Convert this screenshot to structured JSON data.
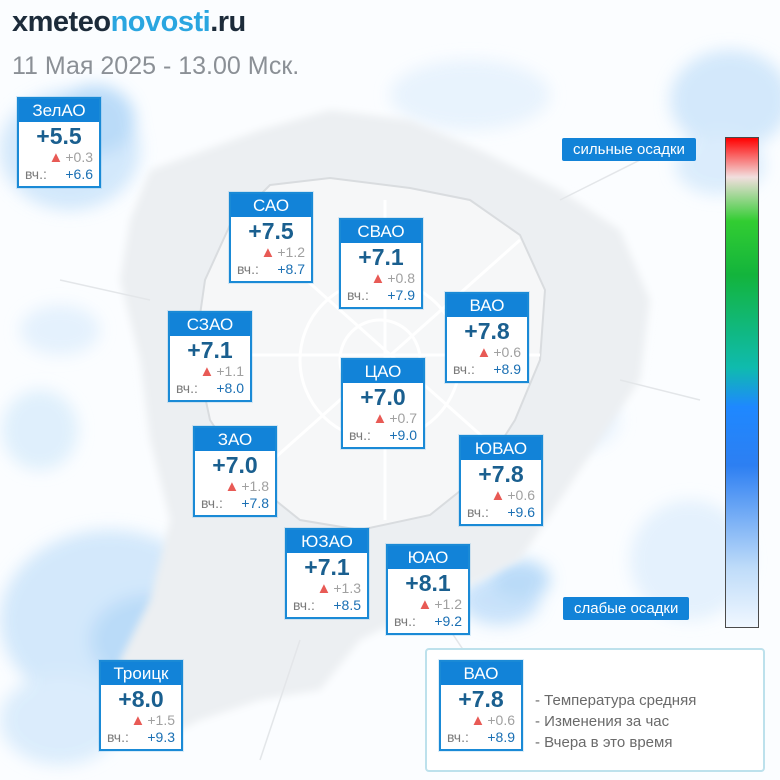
{
  "header": {
    "logo_prefix": "x",
    "logo_part1": "meteo",
    "logo_part2": "novosti",
    "logo_part3": ".ru",
    "datetime": "11 Мая 2025 - 13.00 Мск."
  },
  "colors": {
    "card_header": "#1283d8",
    "temp_text": "#1a5f8f",
    "up_arrow": "#e85a55",
    "yesterday_value": "#1a6fb3",
    "precip_light": "#cfe6fb",
    "precip_medium": "#a8d2f7"
  },
  "scale": {
    "top_label": "сильные осадки",
    "bottom_label": "слабые осадки"
  },
  "districts": [
    {
      "name": "ЗелАО",
      "temp": "+5.5",
      "change": "+0.3",
      "yesterday_label": "вч.:",
      "yesterday": "+6.6"
    },
    {
      "name": "САО",
      "temp": "+7.5",
      "change": "+1.2",
      "yesterday_label": "вч.:",
      "yesterday": "+8.7"
    },
    {
      "name": "СВАО",
      "temp": "+7.1",
      "change": "+0.8",
      "yesterday_label": "вч.:",
      "yesterday": "+7.9"
    },
    {
      "name": "ВАО",
      "temp": "+7.8",
      "change": "+0.6",
      "yesterday_label": "вч.:",
      "yesterday": "+8.9"
    },
    {
      "name": "СЗАО",
      "temp": "+7.1",
      "change": "+1.1",
      "yesterday_label": "вч.:",
      "yesterday": "+8.0"
    },
    {
      "name": "ЦАО",
      "temp": "+7.0",
      "change": "+0.7",
      "yesterday_label": "вч.:",
      "yesterday": "+9.0"
    },
    {
      "name": "ЗАО",
      "temp": "+7.0",
      "change": "+1.8",
      "yesterday_label": "вч.:",
      "yesterday": "+7.8"
    },
    {
      "name": "ЮВАО",
      "temp": "+7.8",
      "change": "+0.6",
      "yesterday_label": "вч.:",
      "yesterday": "+9.6"
    },
    {
      "name": "ЮЗАО",
      "temp": "+7.1",
      "change": "+1.3",
      "yesterday_label": "вч.:",
      "yesterday": "+8.5"
    },
    {
      "name": "ЮАО",
      "temp": "+8.1",
      "change": "+1.2",
      "yesterday_label": "вч.:",
      "yesterday": "+9.2"
    },
    {
      "name": "Троицк",
      "temp": "+8.0",
      "change": "+1.5",
      "yesterday_label": "вч.:",
      "yesterday": "+9.3"
    }
  ],
  "legend": {
    "sample": {
      "name": "ВАО",
      "temp": "+7.8",
      "change": "+0.6",
      "yesterday_label": "вч.:",
      "yesterday": "+8.9"
    },
    "line1": "- Температура средняя",
    "line2": "- Изменения за час",
    "line3": "- Вчера в это время"
  }
}
